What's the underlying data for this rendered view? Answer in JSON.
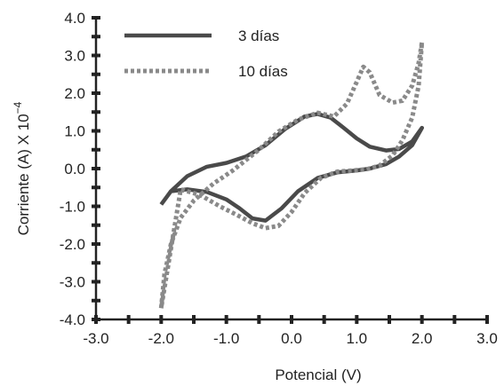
{
  "chart_data": {
    "type": "line",
    "title": "",
    "xlabel": "Potencial (V)",
    "ylabel": "Corriente (A) X 10",
    "ylabel_exponent": "−4",
    "xlim": [
      -3.0,
      3.0
    ],
    "ylim": [
      -4.0,
      4.0
    ],
    "x_ticks": [
      -3.0,
      -2.0,
      -1.0,
      0.0,
      1.0,
      2.0,
      3.0
    ],
    "x_tick_labels": [
      "-3.0",
      "-2.0",
      "-1.0",
      "0.0",
      "1.0",
      "2.0",
      "3.0"
    ],
    "y_ticks": [
      -4.0,
      -3.0,
      -2.0,
      -1.0,
      0.0,
      1.0,
      2.0,
      3.0,
      4.0
    ],
    "y_tick_labels": [
      "-4.0",
      "-3.0",
      "-2.0",
      "-1.0",
      "0.0",
      "1.0",
      "2.0",
      "3.0",
      "4.0"
    ],
    "minor_tick_step": 0.5,
    "grid": false,
    "legend_position": "top-left",
    "series": [
      {
        "name": "3 días",
        "color": "#4a4a4a",
        "style": "solid",
        "points": [
          [
            -2.0,
            -0.95
          ],
          [
            -1.85,
            -0.6
          ],
          [
            -1.6,
            -0.2
          ],
          [
            -1.3,
            0.05
          ],
          [
            -1.0,
            0.15
          ],
          [
            -0.7,
            0.32
          ],
          [
            -0.4,
            0.62
          ],
          [
            -0.1,
            1.05
          ],
          [
            0.2,
            1.38
          ],
          [
            0.4,
            1.45
          ],
          [
            0.6,
            1.35
          ],
          [
            0.8,
            1.08
          ],
          [
            1.0,
            0.8
          ],
          [
            1.2,
            0.58
          ],
          [
            1.45,
            0.48
          ],
          [
            1.65,
            0.52
          ],
          [
            1.85,
            0.72
          ],
          [
            2.0,
            1.08
          ],
          [
            1.85,
            0.62
          ],
          [
            1.65,
            0.32
          ],
          [
            1.45,
            0.12
          ],
          [
            1.2,
            0.0
          ],
          [
            1.0,
            -0.05
          ],
          [
            0.7,
            -0.1
          ],
          [
            0.4,
            -0.25
          ],
          [
            0.1,
            -0.6
          ],
          [
            -0.15,
            -1.05
          ],
          [
            -0.4,
            -1.38
          ],
          [
            -0.6,
            -1.32
          ],
          [
            -0.8,
            -1.05
          ],
          [
            -1.0,
            -0.82
          ],
          [
            -1.3,
            -0.62
          ],
          [
            -1.6,
            -0.55
          ],
          [
            -1.85,
            -0.6
          ],
          [
            -2.0,
            -0.95
          ]
        ]
      },
      {
        "name": "10 días",
        "color": "#8a8a8a",
        "style": "dotted",
        "points": [
          [
            -2.0,
            -3.7
          ],
          [
            -1.95,
            -2.8
          ],
          [
            -1.85,
            -2.0
          ],
          [
            -1.7,
            -1.3
          ],
          [
            -1.5,
            -0.85
          ],
          [
            -1.2,
            -0.4
          ],
          [
            -0.9,
            -0.05
          ],
          [
            -0.5,
            0.5
          ],
          [
            -0.2,
            0.98
          ],
          [
            0.1,
            1.3
          ],
          [
            0.4,
            1.48
          ],
          [
            0.65,
            1.38
          ],
          [
            0.85,
            1.72
          ],
          [
            1.0,
            2.3
          ],
          [
            1.1,
            2.7
          ],
          [
            1.2,
            2.55
          ],
          [
            1.35,
            1.95
          ],
          [
            1.55,
            1.75
          ],
          [
            1.7,
            1.8
          ],
          [
            1.85,
            2.2
          ],
          [
            1.95,
            2.8
          ],
          [
            2.0,
            3.35
          ],
          [
            1.95,
            2.2
          ],
          [
            1.85,
            1.35
          ],
          [
            1.7,
            0.75
          ],
          [
            1.55,
            0.35
          ],
          [
            1.35,
            0.08
          ],
          [
            1.15,
            -0.02
          ],
          [
            0.95,
            -0.05
          ],
          [
            0.7,
            -0.08
          ],
          [
            0.45,
            -0.25
          ],
          [
            0.2,
            -0.65
          ],
          [
            0.0,
            -1.15
          ],
          [
            -0.2,
            -1.52
          ],
          [
            -0.4,
            -1.58
          ],
          [
            -0.6,
            -1.45
          ],
          [
            -0.85,
            -1.22
          ],
          [
            -1.1,
            -1.0
          ],
          [
            -1.4,
            -0.7
          ],
          [
            -1.7,
            -0.55
          ],
          [
            -2.0,
            -3.7
          ]
        ]
      }
    ]
  }
}
